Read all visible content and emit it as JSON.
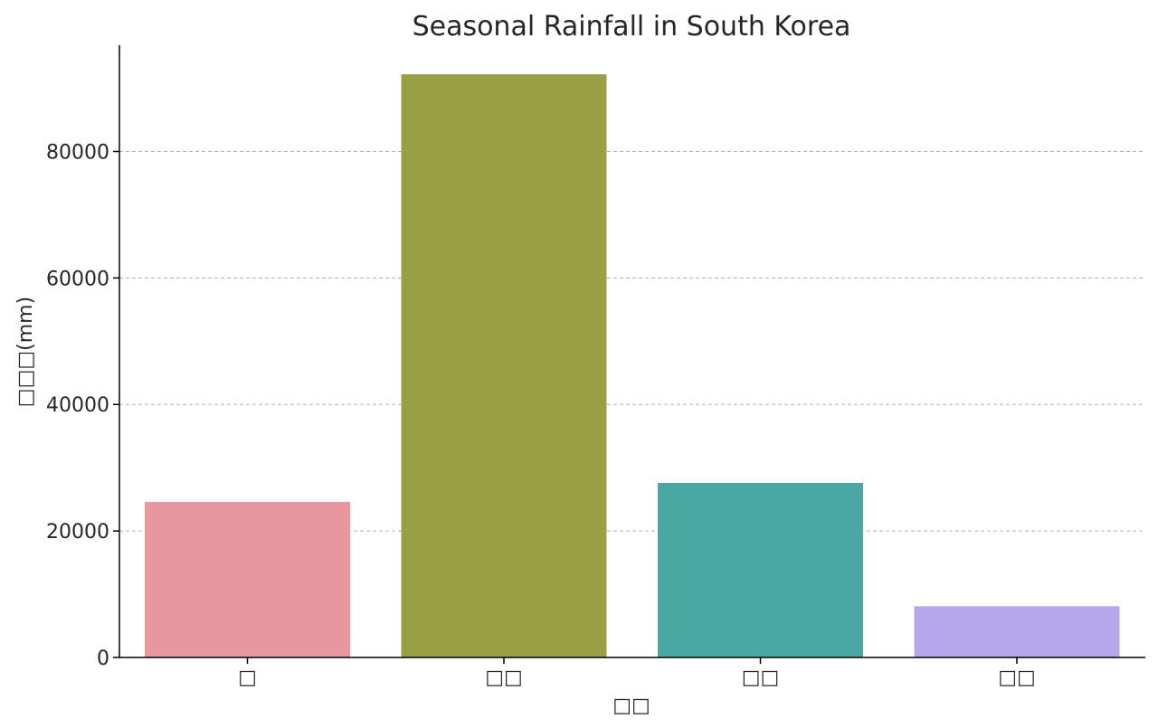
{
  "chart_data": {
    "type": "bar",
    "title": "Seasonal Rainfall in South Korea",
    "xlabel": "□□",
    "ylabel": "□□□(mm)",
    "categories": [
      "□",
      "□□",
      "□□",
      "□□"
    ],
    "values": [
      24600,
      92200,
      27600,
      8100
    ],
    "colors": [
      "#e8969f",
      "#97a144",
      "#4aa8a4",
      "#b6a6ea"
    ],
    "ylim": [
      0,
      96800
    ],
    "yticks": [
      0,
      20000,
      40000,
      60000,
      80000
    ],
    "ytick_labels": [
      "0",
      "20000",
      "40000",
      "60000",
      "80000"
    ],
    "grid": true
  }
}
